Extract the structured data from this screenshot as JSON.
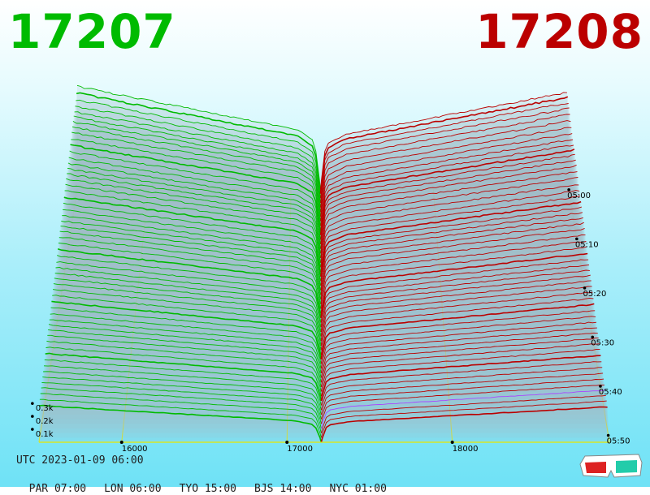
{
  "header": {
    "bid_price": "17207",
    "ask_price": "17208"
  },
  "colors": {
    "bid": "#00bb00",
    "ask": "#bb0000",
    "axis": "#e8e800",
    "highlight": "#aa44ff"
  },
  "chart_data": {
    "type": "3d-depth",
    "x_ticks": [
      "16000",
      "17000",
      "18000"
    ],
    "x_tick_values": [
      16000,
      17000,
      18000
    ],
    "x_range": [
      15500,
      18950
    ],
    "z_ticks": [
      "0.1k",
      "0.2k",
      "0.3k"
    ],
    "z_tick_values": [
      100,
      200,
      300
    ],
    "time_ticks": [
      "05:00",
      "05:10",
      "05:20",
      "05:30",
      "05:40",
      "05:50"
    ],
    "bid_price": 17207,
    "ask_price": 17208,
    "bid_depth_max": 850,
    "ask_depth_max": 840,
    "snapshot_count": 56
  },
  "footer": {
    "utc": "UTC 2023-01-09 06:00",
    "timezones": [
      {
        "label": "PAR 07:00"
      },
      {
        "label": "LON 06:00"
      },
      {
        "label": "TYO 15:00"
      },
      {
        "label": "BJS 14:00"
      },
      {
        "label": "NYC 01:00"
      }
    ]
  },
  "icons": {
    "glasses": "3d-glasses-icon"
  }
}
